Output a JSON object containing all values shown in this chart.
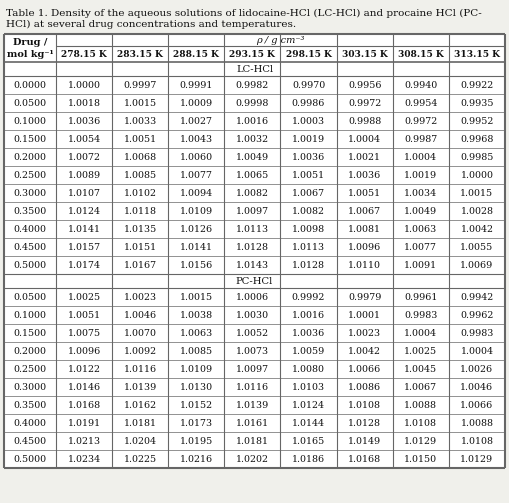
{
  "title_line1": "Table 1. Density of the aqueous solutions of lidocaine-HCl (LC-HCl) and procaine HCl (PC-",
  "title_line2": "HCl) at several drug concentrations and temperatures.",
  "rho_label": "ρ / g cm⁻³",
  "drug_label_line1": "Drug /",
  "drug_label_line2": "mol kg⁻¹",
  "temp_labels": [
    "278.15 K",
    "283.15 K",
    "288.15 K",
    "293.15 K",
    "298.15 K",
    "303.15 K",
    "308.15 K",
    "313.15 K"
  ],
  "lc_label": "LC-HCl",
  "pc_label": "PC-HCl",
  "lc_data": [
    [
      "0.0000",
      "1.0000",
      "0.9997",
      "0.9991",
      "0.9982",
      "0.9970",
      "0.9956",
      "0.9940",
      "0.9922"
    ],
    [
      "0.0500",
      "1.0018",
      "1.0015",
      "1.0009",
      "0.9998",
      "0.9986",
      "0.9972",
      "0.9954",
      "0.9935"
    ],
    [
      "0.1000",
      "1.0036",
      "1.0033",
      "1.0027",
      "1.0016",
      "1.0003",
      "0.9988",
      "0.9972",
      "0.9952"
    ],
    [
      "0.1500",
      "1.0054",
      "1.0051",
      "1.0043",
      "1.0032",
      "1.0019",
      "1.0004",
      "0.9987",
      "0.9968"
    ],
    [
      "0.2000",
      "1.0072",
      "1.0068",
      "1.0060",
      "1.0049",
      "1.0036",
      "1.0021",
      "1.0004",
      "0.9985"
    ],
    [
      "0.2500",
      "1.0089",
      "1.0085",
      "1.0077",
      "1.0065",
      "1.0051",
      "1.0036",
      "1.0019",
      "1.0000"
    ],
    [
      "0.3000",
      "1.0107",
      "1.0102",
      "1.0094",
      "1.0082",
      "1.0067",
      "1.0051",
      "1.0034",
      "1.0015"
    ],
    [
      "0.3500",
      "1.0124",
      "1.0118",
      "1.0109",
      "1.0097",
      "1.0082",
      "1.0067",
      "1.0049",
      "1.0028"
    ],
    [
      "0.4000",
      "1.0141",
      "1.0135",
      "1.0126",
      "1.0113",
      "1.0098",
      "1.0081",
      "1.0063",
      "1.0042"
    ],
    [
      "0.4500",
      "1.0157",
      "1.0151",
      "1.0141",
      "1.0128",
      "1.0113",
      "1.0096",
      "1.0077",
      "1.0055"
    ],
    [
      "0.5000",
      "1.0174",
      "1.0167",
      "1.0156",
      "1.0143",
      "1.0128",
      "1.0110",
      "1.0091",
      "1.0069"
    ]
  ],
  "pc_data": [
    [
      "0.0500",
      "1.0025",
      "1.0023",
      "1.0015",
      "1.0006",
      "0.9992",
      "0.9979",
      "0.9961",
      "0.9942"
    ],
    [
      "0.1000",
      "1.0051",
      "1.0046",
      "1.0038",
      "1.0030",
      "1.0016",
      "1.0001",
      "0.9983",
      "0.9962"
    ],
    [
      "0.1500",
      "1.0075",
      "1.0070",
      "1.0063",
      "1.0052",
      "1.0036",
      "1.0023",
      "1.0004",
      "0.9983"
    ],
    [
      "0.2000",
      "1.0096",
      "1.0092",
      "1.0085",
      "1.0073",
      "1.0059",
      "1.0042",
      "1.0025",
      "1.0004"
    ],
    [
      "0.2500",
      "1.0122",
      "1.0116",
      "1.0109",
      "1.0097",
      "1.0080",
      "1.0066",
      "1.0045",
      "1.0026"
    ],
    [
      "0.3000",
      "1.0146",
      "1.0139",
      "1.0130",
      "1.0116",
      "1.0103",
      "1.0086",
      "1.0067",
      "1.0046"
    ],
    [
      "0.3500",
      "1.0168",
      "1.0162",
      "1.0152",
      "1.0139",
      "1.0124",
      "1.0108",
      "1.0088",
      "1.0066"
    ],
    [
      "0.4000",
      "1.0191",
      "1.0181",
      "1.0173",
      "1.0161",
      "1.0144",
      "1.0128",
      "1.0108",
      "1.0088"
    ],
    [
      "0.4500",
      "1.0213",
      "1.0204",
      "1.0195",
      "1.0181",
      "1.0165",
      "1.0149",
      "1.0129",
      "1.0108"
    ],
    [
      "0.5000",
      "1.0234",
      "1.0225",
      "1.0216",
      "1.0202",
      "1.0186",
      "1.0168",
      "1.0150",
      "1.0129"
    ]
  ],
  "bg_color": "#f0f0eb",
  "text_color": "#111111",
  "line_color": "#666666",
  "fs_title": 7.5,
  "fs_header": 7.0,
  "fs_data": 6.8,
  "fs_section": 7.2
}
